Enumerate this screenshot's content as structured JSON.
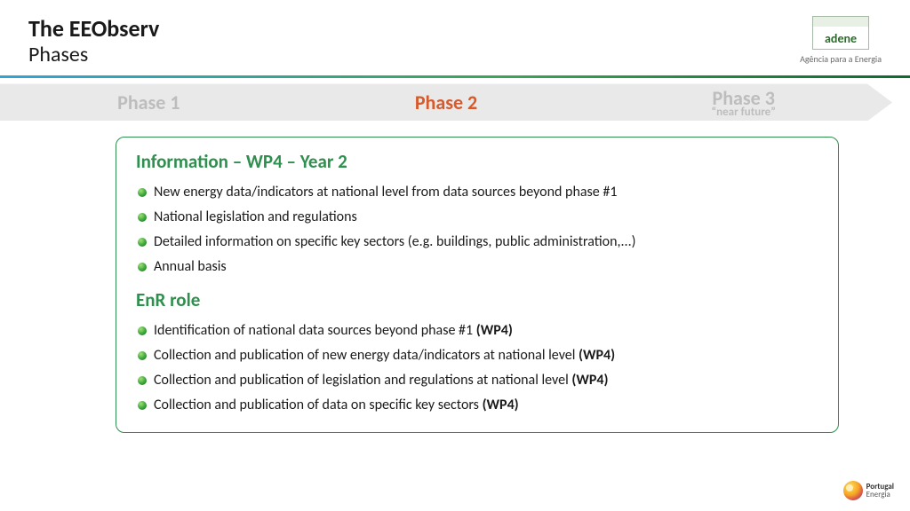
{
  "header": {
    "title_main": "The EEObserv",
    "title_sub": "Phases",
    "logo_text": "adene",
    "logo_tagline": "Agência para a Energia"
  },
  "phases": {
    "p1": "Phase 1",
    "p2": "Phase 2",
    "p3": "Phase 3",
    "p3_sub": "“near future”"
  },
  "box": {
    "section1_title": "Information – WP4 – Year 2",
    "section1_items": [
      "New energy data/indicators at national level from data sources beyond phase #1",
      "National legislation and regulations",
      "Detailed information on specific key sectors (e.g. buildings, public administration,...)",
      "Annual basis"
    ],
    "section2_title": "EnR role",
    "section2_items": [
      {
        "text": "Identification of national data sources beyond phase #1 ",
        "suffix": "(WP4)"
      },
      {
        "text": "Collection and publication of new energy data/indicators at national level ",
        "suffix": "(WP4)"
      },
      {
        "text": "Collection and publication of legislation and regulations at national level ",
        "suffix": "(WP4)"
      },
      {
        "text": "Collection and publication of data on specific key sectors ",
        "suffix": "(WP4)"
      }
    ]
  },
  "footer": {
    "brand": "Portugal",
    "brand_sub": "Energia"
  },
  "colors": {
    "accent_green": "#2f8f4e",
    "active_orange": "#d65a2b",
    "muted_grey": "#bdbdbd",
    "bar_bg": "#e9e9e9"
  }
}
